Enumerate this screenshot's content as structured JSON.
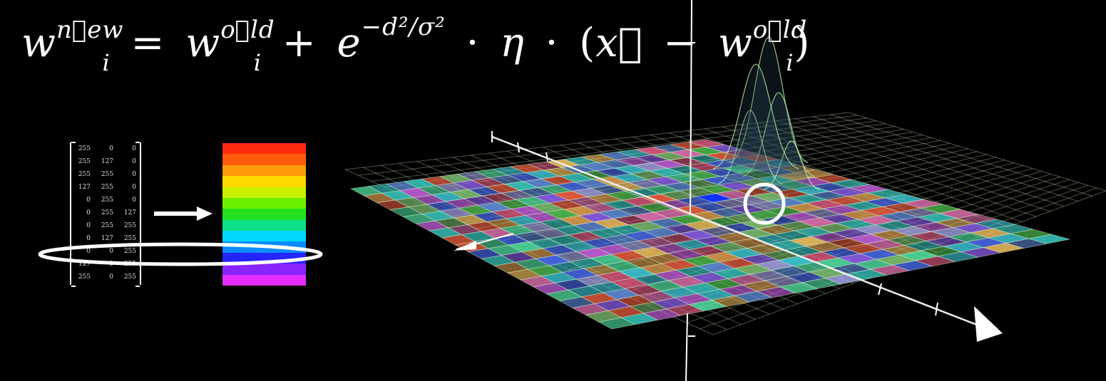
{
  "equation": {
    "w1": "w",
    "sup_new": "n⃗ew",
    "sub_i1": "i",
    "equals": "=",
    "w2": "w",
    "sup_old1": "o⃗ld",
    "sub_i2": "i",
    "plus": "+",
    "e": "e",
    "exp": "−d²/σ²",
    "dot1": "·",
    "eta": "η",
    "dot2": "·",
    "lparen": "(",
    "x": "x⃗",
    "minus": "−",
    "w3": "w",
    "sup_old2": "o⃗ld",
    "sub_i3": "i",
    "rparen": ")"
  },
  "matrix": {
    "rows": [
      [
        "255",
        "0",
        "0"
      ],
      [
        "255",
        "127",
        "0"
      ],
      [
        "255",
        "255",
        "0"
      ],
      [
        "127",
        "255",
        "0"
      ],
      [
        "0",
        "255",
        "0"
      ],
      [
        "0",
        "255",
        "127"
      ],
      [
        "0",
        "255",
        "255"
      ],
      [
        "0",
        "127",
        "255"
      ],
      [
        "0",
        "0",
        "255"
      ],
      [
        "127",
        "0",
        "255"
      ],
      [
        "255",
        "0",
        "255"
      ]
    ],
    "highlighted_row": 8
  },
  "rainbow_colors": [
    "#ff2a10",
    "#ff5a0c",
    "#ff9a0a",
    "#ffd800",
    "#c8f000",
    "#6cf000",
    "#22e01e",
    "#0ce088",
    "#00d8ff",
    "#0a8cff",
    "#2424ff",
    "#8a24ff",
    "#e62cff"
  ],
  "grid": {
    "cells": 20,
    "palette": [
      "#4a6cf0",
      "#38c8c0",
      "#e05a80",
      "#c860e0",
      "#7cc070",
      "#e0a050",
      "#6090e0",
      "#50e0a0",
      "#f06040",
      "#a0a0e0",
      "#40d0e0",
      "#9060f0",
      "#e070b0",
      "#50c050",
      "#f0c060"
    ],
    "selected_cell": [
      13,
      7
    ],
    "selected_color": "#1030ff"
  },
  "colors": {
    "background": "#000000",
    "foreground": "#ffffff",
    "grid_line": "#d8f0c0"
  }
}
